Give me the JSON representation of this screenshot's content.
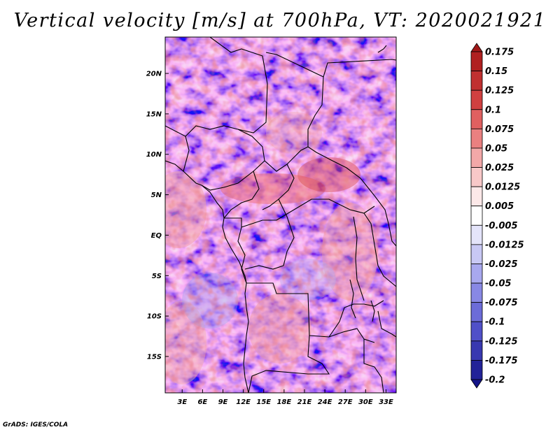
{
  "title": "Vertical velocity [m/s] at 700hPa, VT: 2020021921",
  "credit": "GrADS: IGES/COLA",
  "map": {
    "variable": "Vertical velocity",
    "units": "m/s",
    "level": "700hPa",
    "valid_time": "2020021921",
    "lat_labels": [
      "20N",
      "15N",
      "10N",
      "5N",
      "EQ",
      "5S",
      "10S",
      "15S"
    ],
    "lon_labels": [
      "3E",
      "6E",
      "9E",
      "12E",
      "15E",
      "18E",
      "21E",
      "24E",
      "27E",
      "30E",
      "33E"
    ],
    "lat_range": [
      -19.5,
      24.5
    ],
    "lon_range": [
      0.5,
      34.5
    ]
  },
  "colorbar": {
    "labels": [
      "0.175",
      "0.15",
      "0.125",
      "0.1",
      "0.075",
      "0.05",
      "0.025",
      "0.0125",
      "0.005",
      "-0.005",
      "-0.0125",
      "-0.025",
      "-0.05",
      "-0.075",
      "-0.1",
      "-0.125",
      "-0.175",
      "-0.2"
    ],
    "colors": [
      "#a01818",
      "#b02020",
      "#c03030",
      "#d04040",
      "#e06060",
      "#ea8080",
      "#f2a8a8",
      "#f8c8c8",
      "#fce8e8",
      "#ffffff",
      "#e4e4fa",
      "#c8c8f4",
      "#a8a8ee",
      "#8888e4",
      "#6c6cd8",
      "#5050c8",
      "#3838b0",
      "#222298",
      "#141488"
    ]
  }
}
